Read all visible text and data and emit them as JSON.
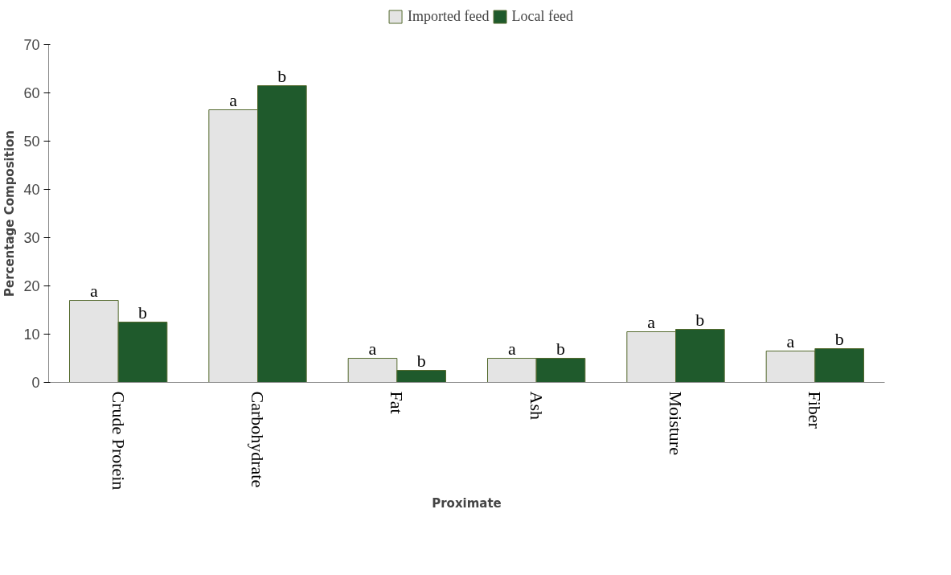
{
  "chart_data": {
    "type": "bar",
    "xlabel": "Proximate",
    "ylabel": "Percentage Composition",
    "categories": [
      "Crude Protein",
      "Carbohydrate",
      "Fat",
      "Ash",
      "Moisture",
      "Fiber"
    ],
    "series": [
      {
        "name": "Imported feed",
        "color": "#e4e4e4",
        "values": [
          17,
          56.5,
          5,
          5,
          10.5,
          6.5
        ],
        "value_labels": [
          "a",
          "a",
          "a",
          "a",
          "a",
          "a"
        ]
      },
      {
        "name": "Local feed",
        "color": "#1f5a2c",
        "values": [
          12.5,
          61.5,
          2.5,
          5,
          11,
          7
        ],
        "value_labels": [
          "b",
          "b",
          "b",
          "b",
          "b",
          "b"
        ]
      }
    ],
    "ylim": [
      0,
      70
    ],
    "yticks": [
      0,
      10,
      20,
      30,
      40,
      50,
      60,
      70
    ],
    "grid": false,
    "legend": "top"
  }
}
